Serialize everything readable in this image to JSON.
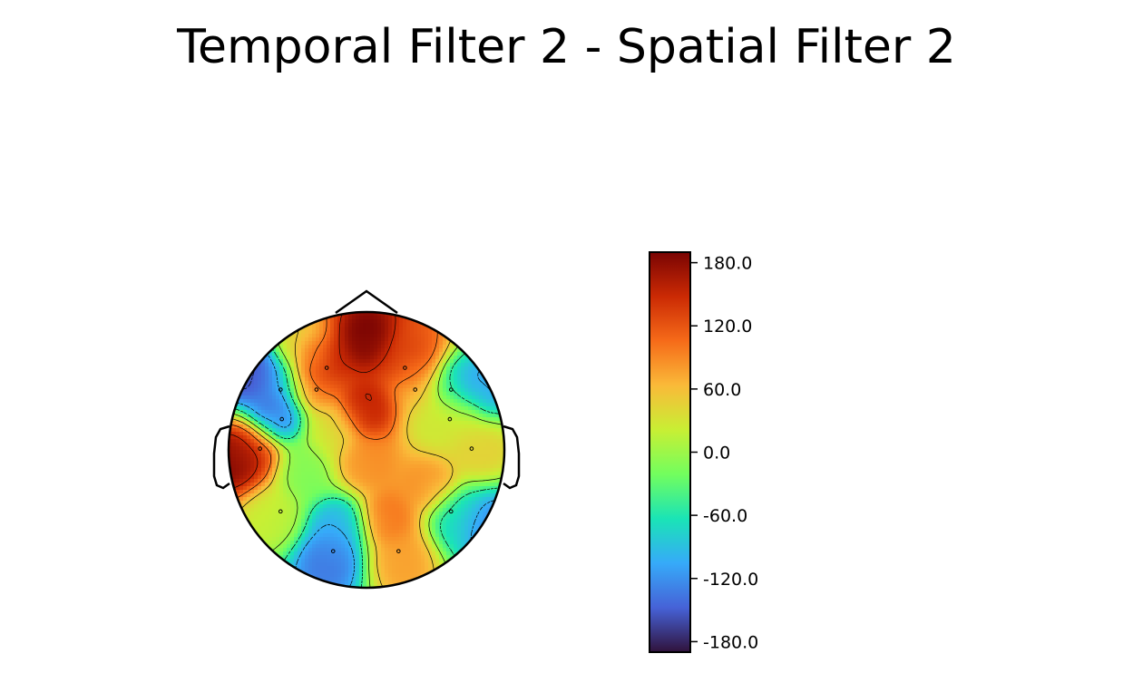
{
  "chart_data": {
    "type": "heatmap",
    "subtype": "eeg-topomap",
    "title": "Temporal Filter 2 - Spatial Filter 2",
    "colormap": "turbo",
    "colors": [
      "#30123b",
      "#4662d7",
      "#36aaf9",
      "#1ae4b6",
      "#72fe5e",
      "#c8ef34",
      "#faba39",
      "#f66b19",
      "#cb2a04",
      "#7a0403"
    ],
    "colorbar": {
      "vmin": -190,
      "vmax": 190,
      "ticks": [
        180,
        120,
        60,
        0,
        -60,
        -120,
        -180
      ],
      "tick_labels": [
        "180.0",
        "120.0",
        "60.0",
        "0.0",
        "-60.0",
        "-120.0",
        "-180.0"
      ]
    },
    "contour_levels": [
      -150,
      -100,
      -50,
      0,
      50,
      100,
      150
    ],
    "electrodes": [
      {
        "x": -0.31,
        "y": 0.64,
        "value": 170
      },
      {
        "x": 0.3,
        "y": 0.64,
        "value": 150
      },
      {
        "x": -0.39,
        "y": 0.47,
        "value": 110
      },
      {
        "x": 0.38,
        "y": 0.47,
        "value": 60
      },
      {
        "x": -0.67,
        "y": 0.47,
        "value": -130
      },
      {
        "x": 0.66,
        "y": 0.47,
        "value": -110
      },
      {
        "x": -0.66,
        "y": 0.24,
        "value": -170
      },
      {
        "x": 0.65,
        "y": 0.24,
        "value": 40
      },
      {
        "x": -0.83,
        "y": 0.01,
        "value": 160
      },
      {
        "x": 0.82,
        "y": 0.01,
        "value": 50
      },
      {
        "x": -0.67,
        "y": -0.48,
        "value": 20
      },
      {
        "x": 0.66,
        "y": -0.48,
        "value": -80
      },
      {
        "x": -0.26,
        "y": -0.79,
        "value": -140
      },
      {
        "x": 0.25,
        "y": -0.79,
        "value": 80
      }
    ],
    "anchors": [
      {
        "x": 0.0,
        "y": 0.8,
        "value": 200
      },
      {
        "x": 0.0,
        "y": 0.3,
        "value": 170
      },
      {
        "x": 0.0,
        "y": -0.1,
        "value": 90
      },
      {
        "x": -0.25,
        "y": 0.15,
        "value": 30
      },
      {
        "x": -0.45,
        "y": -0.15,
        "value": -20
      },
      {
        "x": -0.95,
        "y": -0.05,
        "value": 200
      },
      {
        "x": -0.85,
        "y": 0.55,
        "value": -180
      },
      {
        "x": 0.85,
        "y": 0.45,
        "value": -120
      },
      {
        "x": 0.5,
        "y": 0.2,
        "value": 20
      },
      {
        "x": 0.45,
        "y": -0.25,
        "value": 90
      },
      {
        "x": 0.9,
        "y": -0.55,
        "value": -130
      },
      {
        "x": -0.2,
        "y": -0.55,
        "value": -110
      },
      {
        "x": 0.15,
        "y": -0.5,
        "value": 110
      },
      {
        "x": 0.35,
        "y": 0.7,
        "value": 120
      },
      {
        "x": -0.45,
        "y": 0.75,
        "value": 40
      }
    ]
  }
}
